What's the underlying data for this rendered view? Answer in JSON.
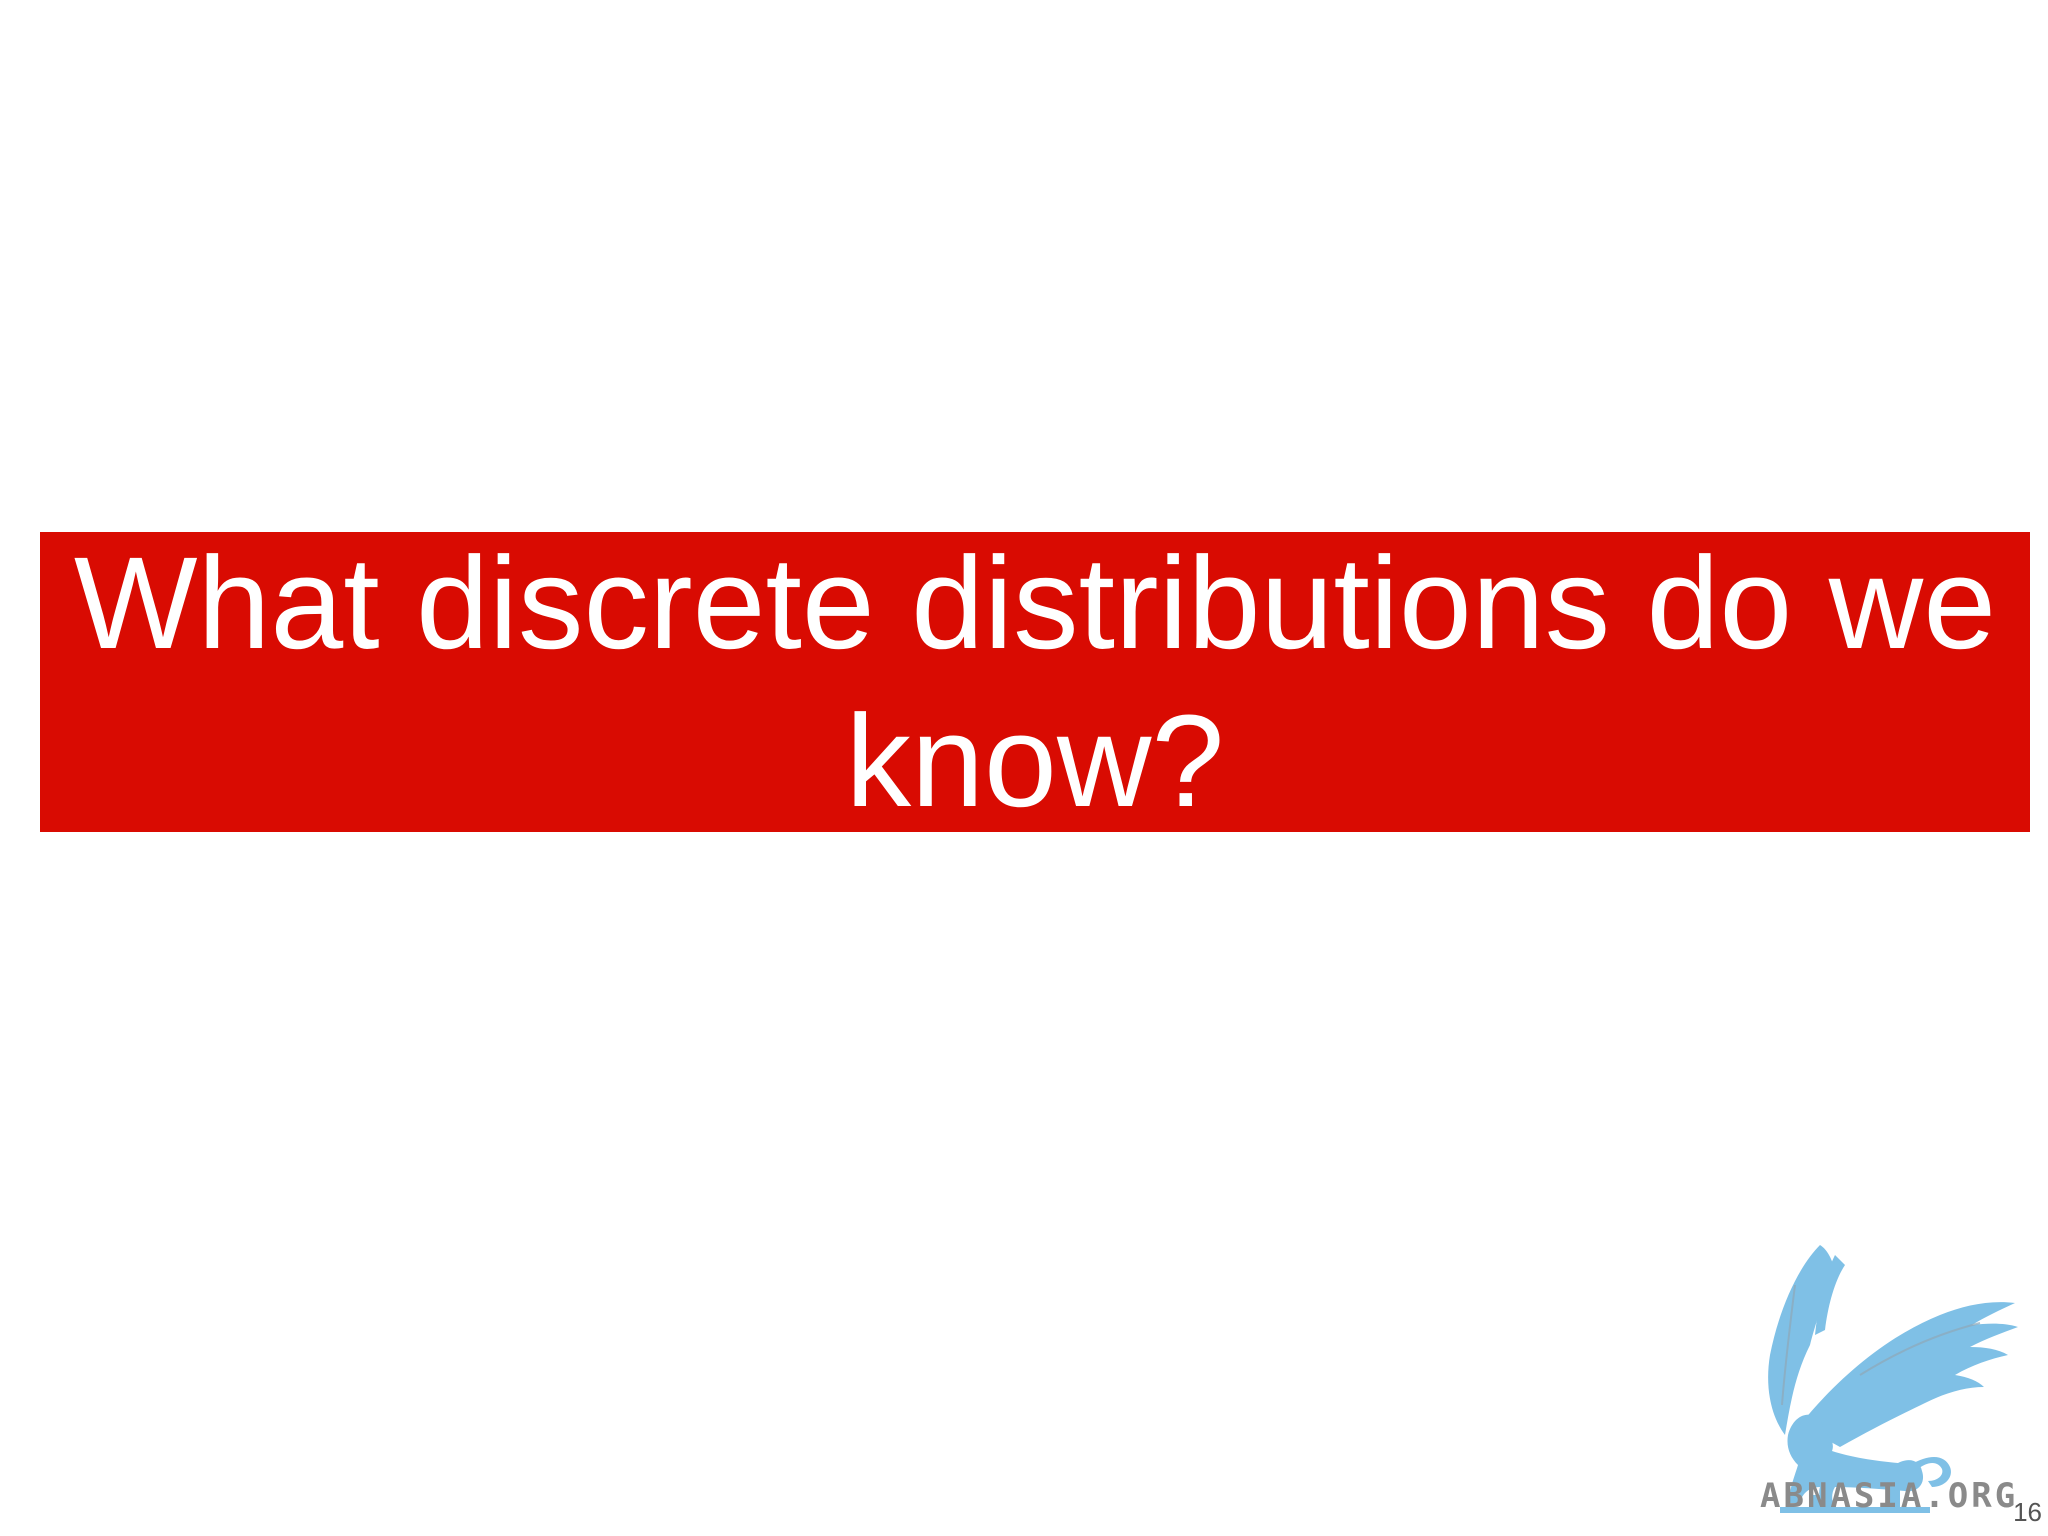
{
  "slide": {
    "title": "What discrete distributions do we know?",
    "page_number": "16",
    "watermark": "ABNASIA.ORG"
  },
  "colors": {
    "title_band": "#d90b02",
    "title_text": "#ffffff",
    "logo": "#7fc0e6",
    "watermark": "#8a8a8a"
  },
  "icons": {
    "logo": "griffin-logo-icon"
  }
}
